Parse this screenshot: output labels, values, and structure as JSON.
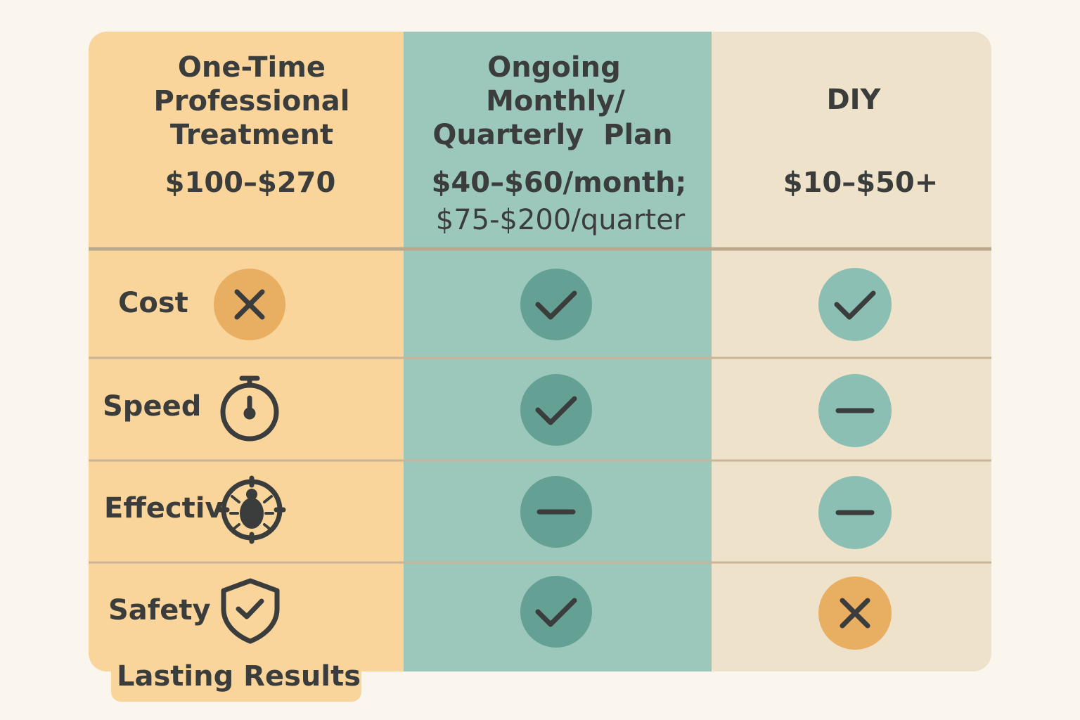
{
  "columns": [
    {
      "title": [
        "One-Time",
        "Professional",
        "Treatment"
      ],
      "price": [
        "$100–$270"
      ]
    },
    {
      "title": [
        "Ongoing",
        "Monthly/",
        "Quarterly  Plan"
      ],
      "price": [
        "$40–$60/month;",
        "$75-$200/quarter"
      ]
    },
    {
      "title": [
        "DIY"
      ],
      "price": [
        "$10–$50+"
      ]
    }
  ],
  "rows": [
    "Cost",
    "Speed",
    "Effectiv",
    "Safety"
  ],
  "footer": "Lasting Results"
}
